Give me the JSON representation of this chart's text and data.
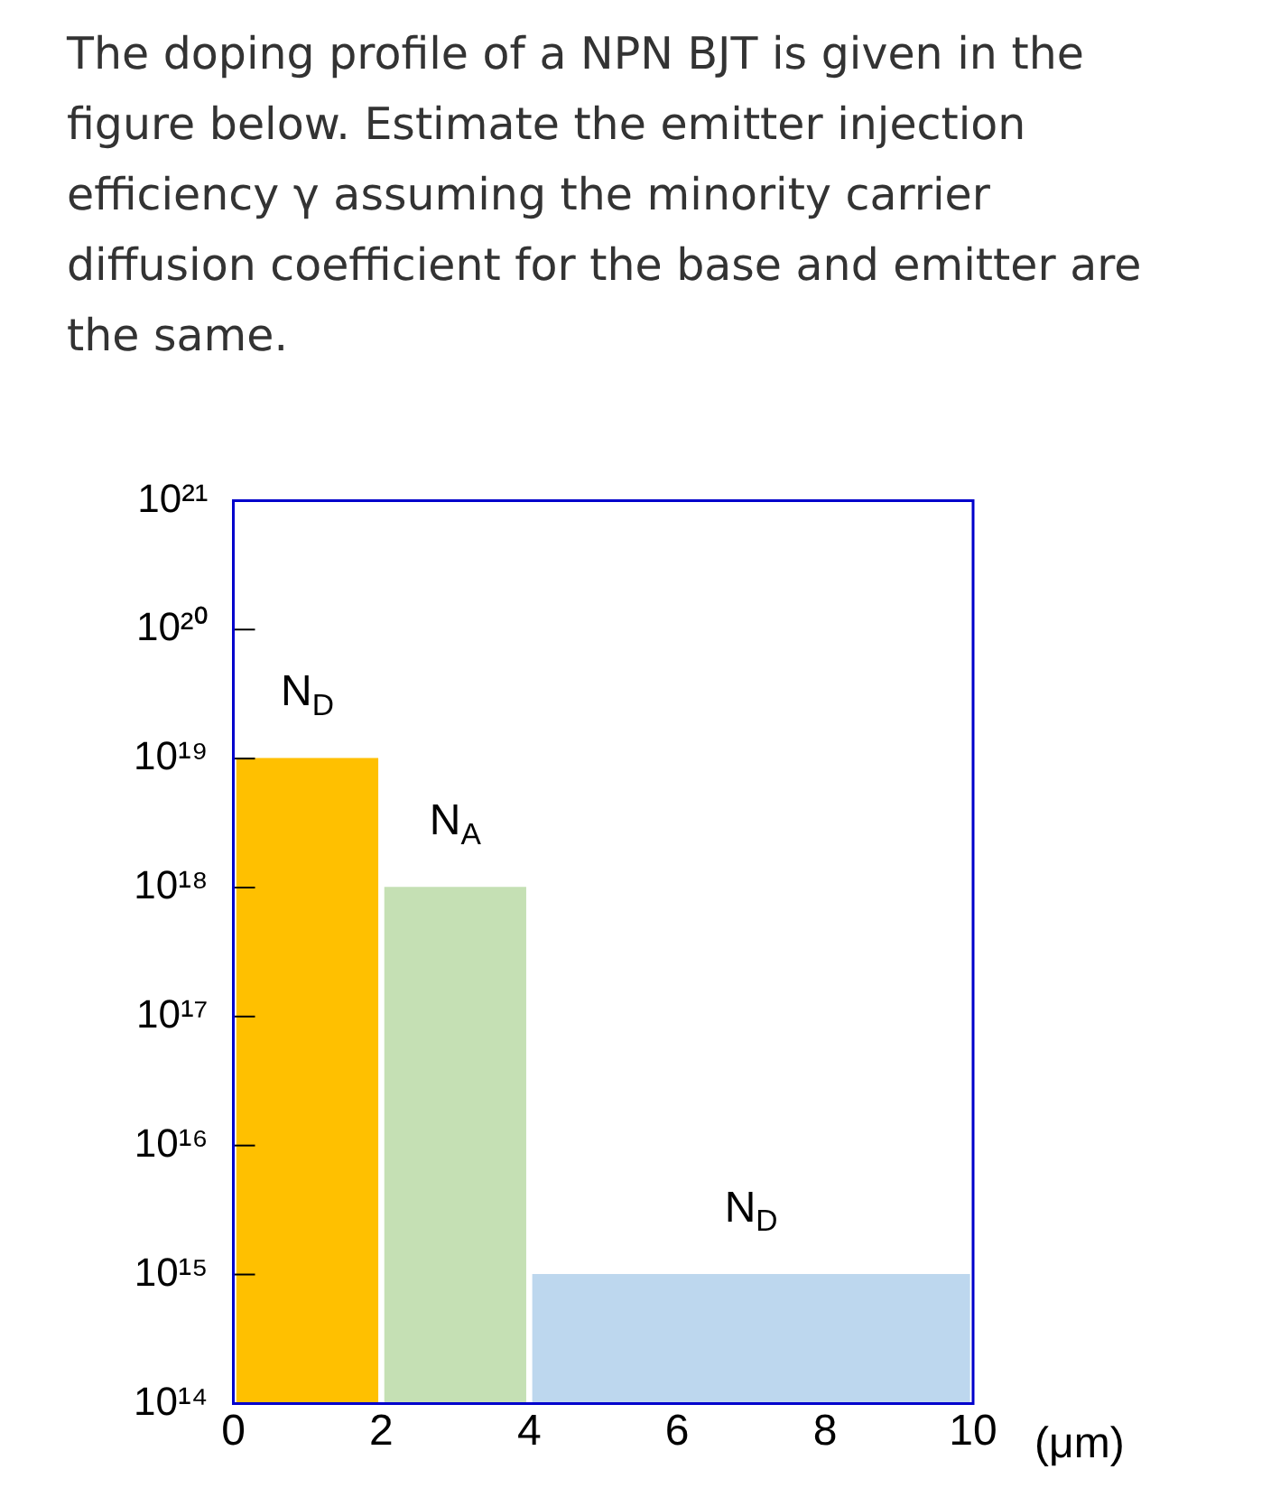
{
  "chart_data": {
    "type": "histogram",
    "title": "The doping profile of a NPN BJT is given in the figure below. Estimate the emitter injection efficiency γ assuming the minority carrier diffusion coefficient for the base and emitter are the same.",
    "xlabel": "(μm)",
    "bins": [
      0,
      2,
      4,
      10
    ],
    "values": [
      1e+19,
      1e+18,
      1000000000000000.0
    ],
    "colors": [
      "#ffc000",
      "#c5e0b4",
      "#bdd7ee"
    ],
    "log": "y",
    "xlim": [
      0,
      10
    ],
    "xticks": [
      0,
      2,
      4,
      6,
      8,
      10
    ],
    "ylim": [
      100000000000000.0,
      1e+21
    ],
    "yticks": [
      {
        "value": 100000000000000.0,
        "label": "10¹⁴"
      },
      {
        "value": 1000000000000000.0,
        "label": "10¹⁵"
      },
      {
        "value": 1e+16,
        "label": "10¹⁶"
      },
      {
        "value": 1e+17,
        "label": "10¹⁷"
      },
      {
        "value": 1e+18,
        "label": "10¹⁸"
      },
      {
        "value": 1e+19,
        "label": "10¹⁹"
      },
      {
        "value": 1e+20,
        "label": "10²⁰"
      },
      {
        "value": 1e+21,
        "label": "10²¹"
      }
    ],
    "grid": false,
    "legend": false,
    "annotations": [
      "N$_{D}$",
      "N$_{A}$",
      "N$_{D}$"
    ]
  }
}
